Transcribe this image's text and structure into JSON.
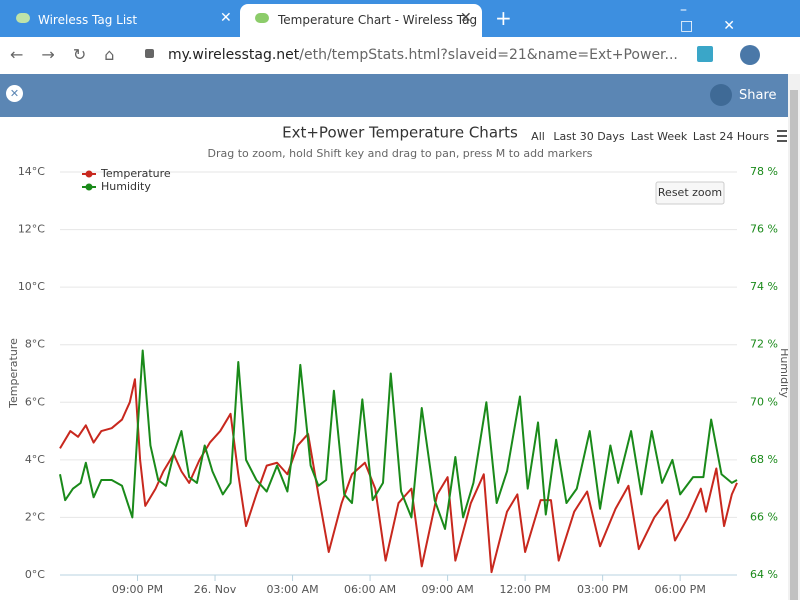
{
  "browser": {
    "tabs": [
      "Wireless Tag List",
      "Temperature Chart - Wireless Tag"
    ],
    "url_host": "my.wirelesstag.net",
    "url_path": "/eth/tempStats.html?slaveid=21&name=Ext+Power..."
  },
  "toolbar": {
    "share": "Share"
  },
  "range_buttons": [
    "All",
    "Last 30 Days",
    "Last Week",
    "Last 24 Hours"
  ],
  "reset_zoom": "Reset zoom",
  "chart_data": {
    "type": "line",
    "title": "Ext+Power Temperature Charts",
    "subtitle": "Drag to zoom, hold Shift key and drag to pan, press M to add markers",
    "y_label": "Temperature",
    "y2_label": "Humidity",
    "grid": true,
    "legend": "top-left",
    "xlim": [
      18,
      44.2
    ],
    "xticks": [
      {
        "value": 21,
        "label": "09:00 PM"
      },
      {
        "value": 24,
        "label": "26. Nov"
      },
      {
        "value": 27,
        "label": "03:00 AM"
      },
      {
        "value": 30,
        "label": "06:00 AM"
      },
      {
        "value": 33,
        "label": "09:00 AM"
      },
      {
        "value": 36,
        "label": "12:00 PM"
      },
      {
        "value": 39,
        "label": "03:00 PM"
      },
      {
        "value": 42,
        "label": "06:00 PM"
      }
    ],
    "ylim": [
      0,
      14
    ],
    "yticks": [
      {
        "value": 0,
        "label": "0°C"
      },
      {
        "value": 2,
        "label": "2°C"
      },
      {
        "value": 4,
        "label": "4°C"
      },
      {
        "value": 6,
        "label": "6°C"
      },
      {
        "value": 8,
        "label": "8°C"
      },
      {
        "value": 10,
        "label": "10°C"
      },
      {
        "value": 12,
        "label": "12°C"
      },
      {
        "value": 14,
        "label": "14°C"
      }
    ],
    "y2lim": [
      64,
      78
    ],
    "y2ticks": [
      {
        "value": 64,
        "label": "64 %"
      },
      {
        "value": 66,
        "label": "66 %"
      },
      {
        "value": 68,
        "label": "68 %"
      },
      {
        "value": 70,
        "label": "70 %"
      },
      {
        "value": 72,
        "label": "72 %"
      },
      {
        "value": 74,
        "label": "74 %"
      },
      {
        "value": 76,
        "label": "76 %"
      },
      {
        "value": 78,
        "label": "78 %"
      }
    ],
    "series": [
      {
        "name": "Temperature",
        "color": "#c8281e",
        "x": [
          18.0,
          18.4,
          18.7,
          19.0,
          19.3,
          19.6,
          20.0,
          20.4,
          20.7,
          20.9,
          21.1,
          21.3,
          21.7,
          22.0,
          22.4,
          22.7,
          23.0,
          23.4,
          23.8,
          24.2,
          24.6,
          24.9,
          25.2,
          25.6,
          26.0,
          26.4,
          26.8,
          27.2,
          27.6,
          28.0,
          28.4,
          28.9,
          29.3,
          29.8,
          30.2,
          30.6,
          31.1,
          31.6,
          32.0,
          32.6,
          33.0,
          33.3,
          33.9,
          34.4,
          34.7,
          35.3,
          35.7,
          36.0,
          36.6,
          37.0,
          37.3,
          37.9,
          38.4,
          38.9,
          39.5,
          40.0,
          40.4,
          41.0,
          41.5,
          41.8,
          42.3,
          42.8,
          43.0,
          43.4,
          43.7,
          44.0,
          44.2
        ],
        "values": [
          4.4,
          5.0,
          4.8,
          5.2,
          4.6,
          5.0,
          5.1,
          5.4,
          6.0,
          6.8,
          4.0,
          2.4,
          3.0,
          3.6,
          4.2,
          3.6,
          3.2,
          4.0,
          4.6,
          5.0,
          5.6,
          3.5,
          1.7,
          2.8,
          3.8,
          3.9,
          3.5,
          4.5,
          4.9,
          2.8,
          0.8,
          2.5,
          3.5,
          3.9,
          3.0,
          0.5,
          2.5,
          3.0,
          0.3,
          2.8,
          3.4,
          0.5,
          2.5,
          3.5,
          0.1,
          2.2,
          2.8,
          0.8,
          2.6,
          2.6,
          0.5,
          2.2,
          2.9,
          1.0,
          2.3,
          3.1,
          0.9,
          2.0,
          2.6,
          1.2,
          2.0,
          3.0,
          2.2,
          3.7,
          1.7,
          2.8,
          3.2
        ]
      },
      {
        "name": "Humidity",
        "color": "#1a8a1a",
        "axis": "y2",
        "x": [
          18.0,
          18.2,
          18.5,
          18.8,
          19.0,
          19.3,
          19.6,
          20.0,
          20.4,
          20.8,
          21.0,
          21.2,
          21.5,
          21.8,
          22.1,
          22.4,
          22.7,
          23.0,
          23.3,
          23.6,
          23.9,
          24.3,
          24.6,
          24.9,
          25.2,
          25.6,
          26.0,
          26.4,
          26.8,
          27.1,
          27.3,
          27.7,
          28.0,
          28.3,
          28.6,
          29.0,
          29.3,
          29.7,
          30.1,
          30.5,
          30.8,
          31.2,
          31.6,
          32.0,
          32.5,
          32.9,
          33.3,
          33.6,
          34.0,
          34.5,
          34.9,
          35.3,
          35.8,
          36.1,
          36.5,
          36.8,
          37.2,
          37.6,
          38.0,
          38.5,
          38.9,
          39.3,
          39.6,
          40.1,
          40.5,
          40.9,
          41.3,
          41.7,
          42.0,
          42.5,
          42.9,
          43.2,
          43.6,
          44.0,
          44.2
        ],
        "values": [
          67.5,
          66.6,
          67.0,
          67.2,
          67.9,
          66.7,
          67.3,
          67.3,
          67.1,
          66.0,
          69.0,
          71.8,
          68.5,
          67.3,
          67.1,
          68.2,
          69.0,
          67.4,
          67.2,
          68.5,
          67.6,
          66.8,
          67.2,
          71.4,
          68.0,
          67.3,
          66.9,
          67.8,
          66.9,
          69.0,
          71.3,
          67.8,
          67.1,
          67.3,
          70.4,
          66.8,
          66.5,
          70.1,
          66.6,
          67.2,
          71.0,
          66.9,
          66.0,
          69.8,
          66.6,
          65.6,
          68.1,
          66.0,
          67.2,
          70.0,
          66.5,
          67.6,
          70.2,
          67.0,
          69.3,
          66.1,
          68.7,
          66.5,
          67.0,
          69.0,
          66.3,
          68.5,
          67.2,
          69.0,
          66.8,
          69.0,
          67.2,
          68.0,
          66.8,
          67.4,
          67.4,
          69.4,
          67.5,
          67.2,
          67.3
        ]
      }
    ]
  }
}
